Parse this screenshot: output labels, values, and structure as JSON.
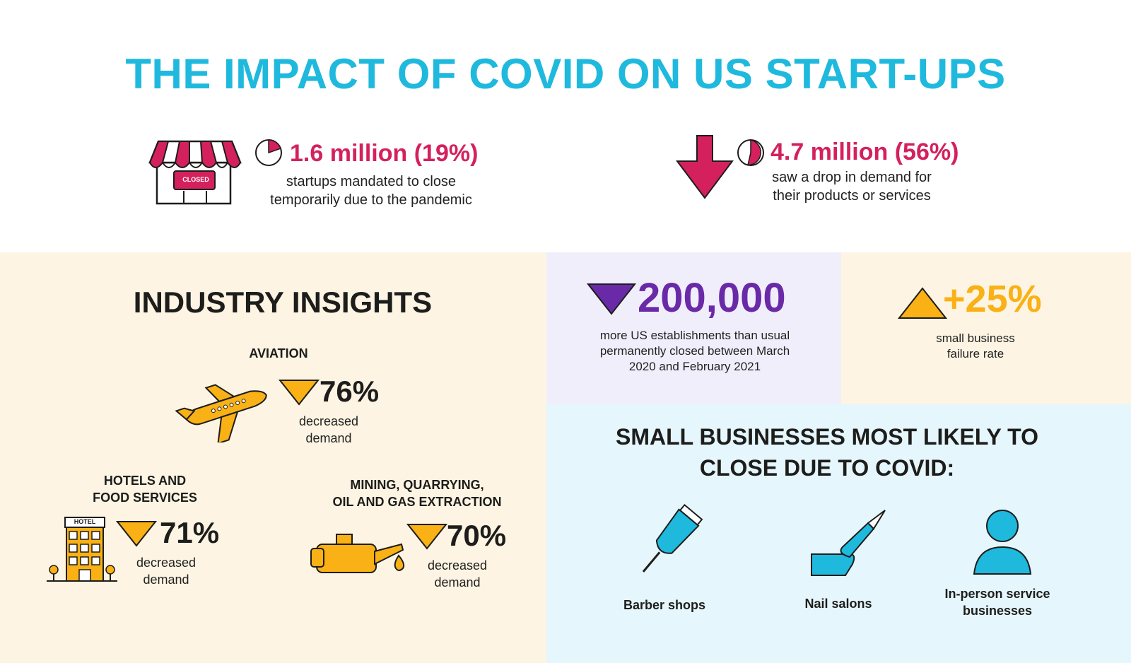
{
  "title": "THE IMPACT OF COVID ON US START-UPS",
  "top_stats": [
    {
      "value": "1.6 million (19%)",
      "desc_line1": "startups mandated to close",
      "desc_line2": "temporarily due to the pandemic",
      "sign_text": "CLOSED"
    },
    {
      "value": "4.7 million (56%)",
      "desc_line1": "saw a drop in demand for",
      "desc_line2": "their products or services"
    }
  ],
  "industry": {
    "heading": "INDUSTRY INSIGHTS",
    "aviation": {
      "title": "AVIATION",
      "pct": "76%",
      "line1": "decreased",
      "line2": "demand"
    },
    "hotels": {
      "title_line1": "HOTELS AND",
      "title_line2": "FOOD SERVICES",
      "pct": "71%",
      "line1": "decreased",
      "line2": "demand",
      "sign": "HOTEL"
    },
    "mining": {
      "title_line1": "MINING, QUARRYING,",
      "title_line2": "OIL AND GAS EXTRACTION",
      "pct": "70%",
      "line1": "decreased",
      "line2": "demand"
    }
  },
  "closures": {
    "value": "200,000",
    "line1": "more US establishments than usual",
    "line2": "permanently closed between March",
    "line3": "2020 and February 2021"
  },
  "failure": {
    "value": "+25%",
    "line1": "small business",
    "line2": "failure rate"
  },
  "likely": {
    "heading_line1": "SMALL BUSINESSES MOST LIKELY TO",
    "heading_line2": "CLOSE DUE TO COVID:",
    "items": [
      {
        "label_line1": "Barber shops",
        "label_line2": ""
      },
      {
        "label_line1": "Nail salons",
        "label_line2": ""
      },
      {
        "label_line1": "In-person service",
        "label_line2": "businesses"
      }
    ]
  },
  "colors": {
    "cyan": "#1fb9de",
    "pink": "#d4215d",
    "purple": "#6a2aa8",
    "orange": "#f9b115",
    "cream": "#fdf4e3",
    "lavender": "#f1eefb",
    "lightblue": "#e5f6fc"
  }
}
